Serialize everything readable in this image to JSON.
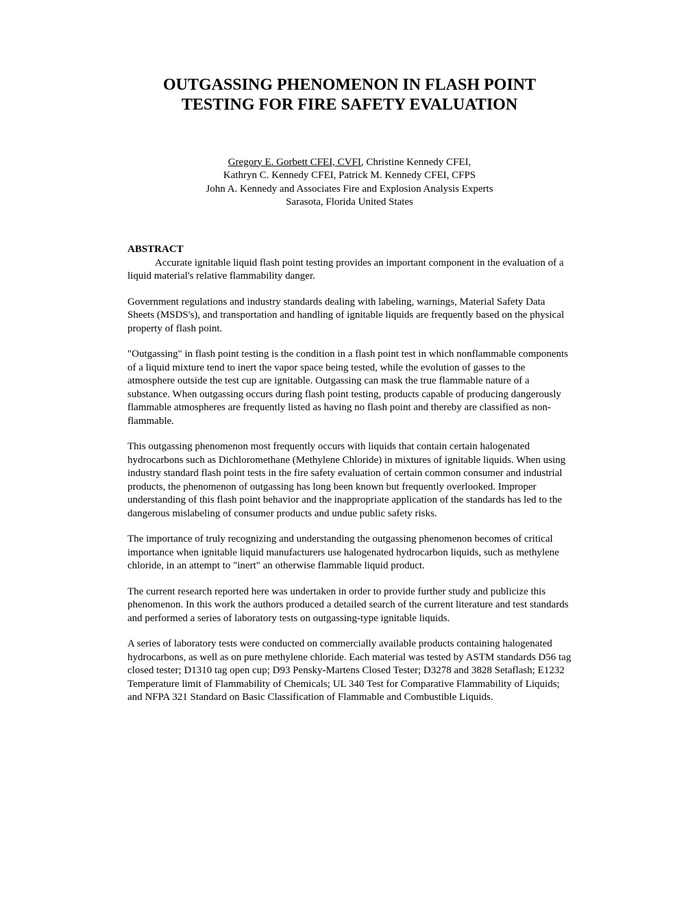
{
  "title": {
    "line1": "OUTGASSING PHENOMENON IN FLASH POINT",
    "line2": "TESTING FOR FIRE SAFETY EVALUATION"
  },
  "authors": {
    "primary": "Gregory E. Gorbett CFEI, CVFI",
    "line1_rest": ", Christine Kennedy CFEI,",
    "line2": "Kathryn C. Kennedy CFEI, Patrick M. Kennedy CFEI, CFPS",
    "line3": "John A. Kennedy and Associates Fire and Explosion Analysis Experts",
    "line4": "Sarasota, Florida United States"
  },
  "abstract": {
    "heading": "ABSTRACT",
    "intro": "Accurate ignitable liquid flash point testing provides an important component in the evaluation of a liquid material's relative flammability danger.",
    "p1": "Government regulations and industry standards dealing with labeling, warnings, Material Safety Data Sheets (MSDS's), and transportation and handling of ignitable liquids are frequently based on the physical property of flash point.",
    "p2": "\"Outgassing\" in flash point testing is the condition in a flash point test in which nonflammable components of a liquid mixture tend to inert the vapor space being tested, while the evolution of gasses to the atmosphere outside the test cup are ignitable.  Outgassing can mask the true flammable nature of a substance.  When outgassing occurs during flash point testing, products capable of producing dangerously flammable atmospheres are frequently listed as having no flash point and thereby are classified as non-flammable.",
    "p3": "This outgassing phenomenon most frequently occurs with liquids that contain certain halogenated hydrocarbons such as Dichloromethane (Methylene Chloride) in mixtures of ignitable liquids.  When using industry standard flash point tests in the fire safety evaluation of certain common consumer and industrial products, the phenomenon of outgassing has long been known but frequently overlooked.  Improper understanding of this flash point behavior and the inappropriate application of the standards has led to the dangerous mislabeling of consumer products and undue public safety risks.",
    "p4": "The importance of truly recognizing and understanding the outgassing phenomenon becomes of critical importance when ignitable liquid manufacturers use halogenated hydrocarbon liquids, such as methylene chloride, in an attempt to \"inert\" an otherwise flammable liquid product.",
    "p5": "The current research reported here was undertaken in order to provide further study and publicize this phenomenon.  In this work the authors produced a detailed search of the current literature and test standards and performed a series of laboratory tests on outgassing-type ignitable liquids.",
    "p6": "A series of laboratory tests were conducted on commercially available products containing halogenated hydrocarbons, as well as on pure methylene chloride.  Each material was tested by ASTM standards D56 tag closed tester; D1310 tag open cup; D93 Pensky-Martens Closed Tester;  D3278 and 3828  Setaflash; E1232 Temperature limit of Flammability of Chemicals; UL 340 Test for Comparative Flammability of Liquids; and NFPA 321 Standard on Basic Classification of Flammable and Combustible Liquids."
  },
  "colors": {
    "text": "#000000",
    "background": "#ffffff"
  },
  "typography": {
    "title_fontsize": 24,
    "body_fontsize": 15,
    "font_family": "Times New Roman"
  }
}
